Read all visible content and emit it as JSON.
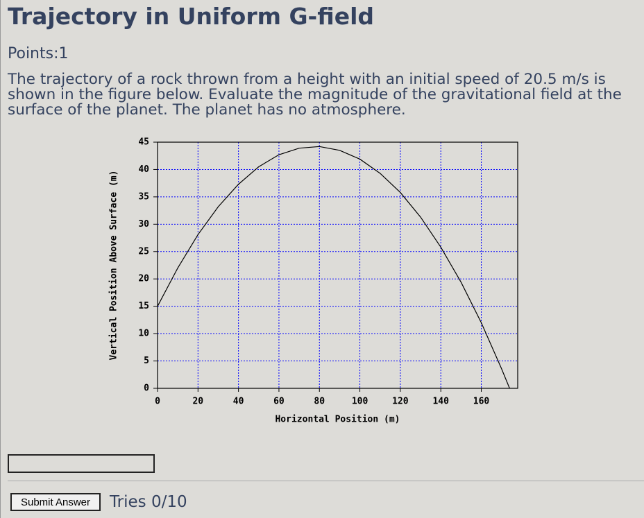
{
  "header": {
    "title": "Trajectory in Uniform G-field"
  },
  "points": "Points:1",
  "question": "The trajectory of a rock thrown from a height with an initial speed of 20.5 m/s is shown in the figure below. Evaluate the magnitude of the gravitational field at the surface of the planet. The planet has no atmosphere.",
  "chart_data": {
    "type": "line",
    "x_label": "Horizontal Position (m)",
    "y_label": "Vertical Position Above Surface (m)",
    "x": [
      0,
      10,
      20,
      30,
      40,
      50,
      60,
      70,
      80,
      90,
      100,
      110,
      120,
      130,
      140,
      150,
      160,
      170,
      174
    ],
    "values": [
      15,
      22.0,
      28.1,
      33.2,
      37.3,
      40.5,
      42.7,
      43.9,
      44.2,
      43.5,
      41.9,
      39.3,
      35.8,
      31.3,
      25.8,
      19.4,
      12.0,
      3.6,
      0
    ],
    "color": "#000000",
    "xlim": [
      0,
      178
    ],
    "xticks": [
      0,
      20,
      40,
      60,
      80,
      100,
      120,
      140,
      160
    ],
    "ylim": [
      0,
      45
    ],
    "yticks": [
      0,
      5,
      10,
      15,
      20,
      25,
      30,
      35,
      40,
      45
    ],
    "grid": true,
    "grid_color": "#0000ff"
  },
  "form": {
    "submit": "Submit Answer",
    "tries": "Tries 0/10"
  }
}
